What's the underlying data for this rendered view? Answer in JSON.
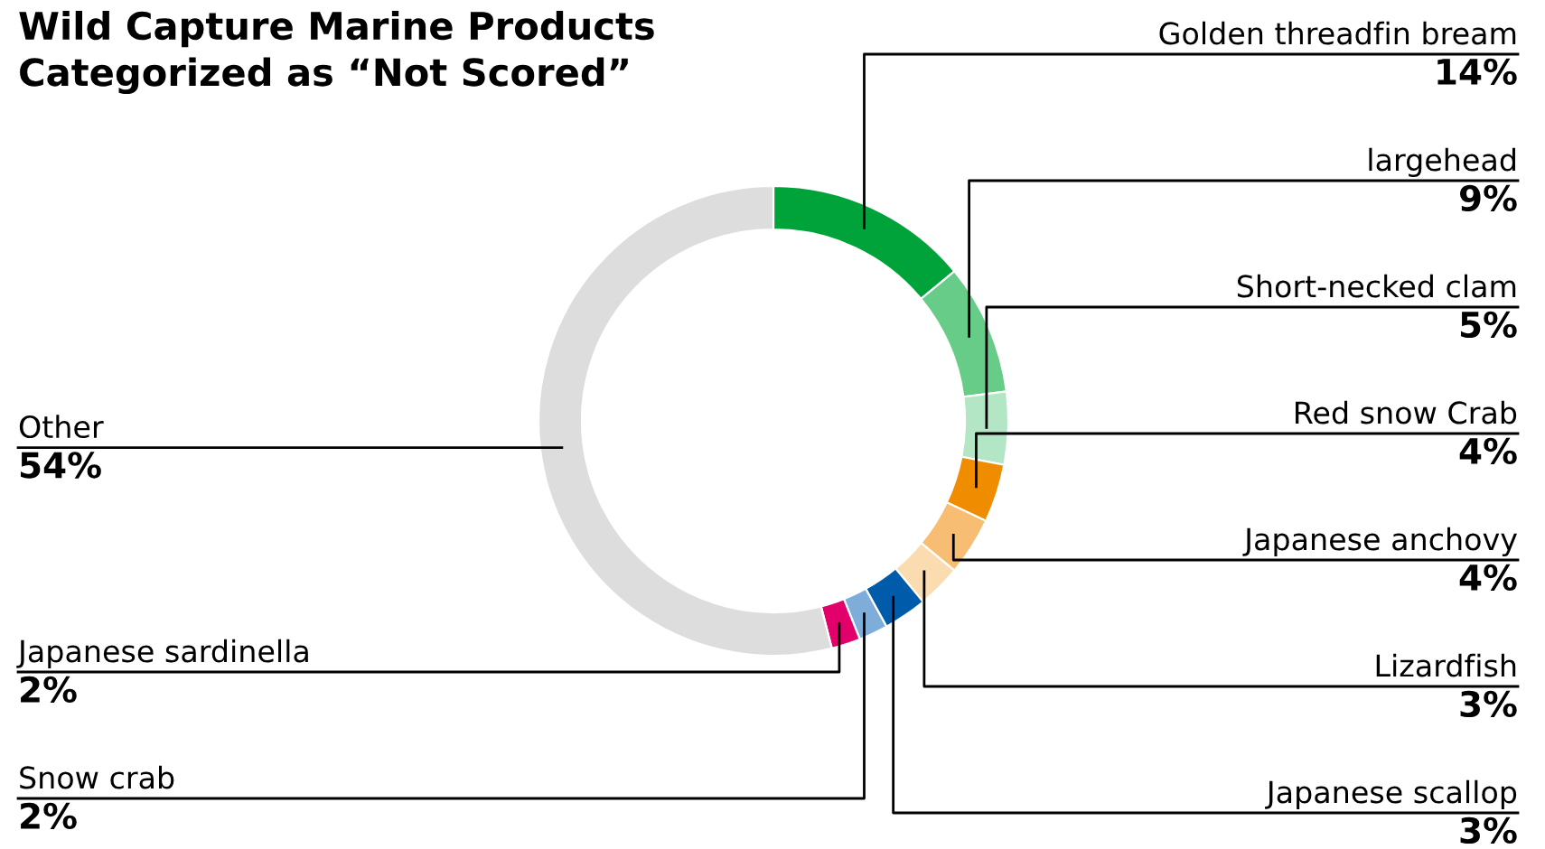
{
  "chart_data": {
    "type": "donut",
    "title": "Wild Capture Marine Products\nCategorized as “Not Scored”",
    "categories": [
      "Golden threadfin bream",
      "largehead",
      "Short-necked clam",
      "Red snow Crab",
      "Japanese anchovy",
      "Lizardfish",
      "Japanese scallop",
      "Snow crab",
      "Japanese sardinella",
      "Other"
    ],
    "values": [
      14,
      9,
      5,
      4,
      4,
      3,
      3,
      2,
      2,
      54
    ],
    "value_labels": [
      "14%",
      "9%",
      "5%",
      "4%",
      "4%",
      "3%",
      "3%",
      "2%",
      "2%",
      "54%"
    ],
    "colors": [
      "#00a33a",
      "#66cc88",
      "#b3e6c4",
      "#f08c00",
      "#f7bd73",
      "#fbdcb0",
      "#005bab",
      "#7fadd9",
      "#e2006a",
      "#dddddd"
    ],
    "legend": false
  }
}
